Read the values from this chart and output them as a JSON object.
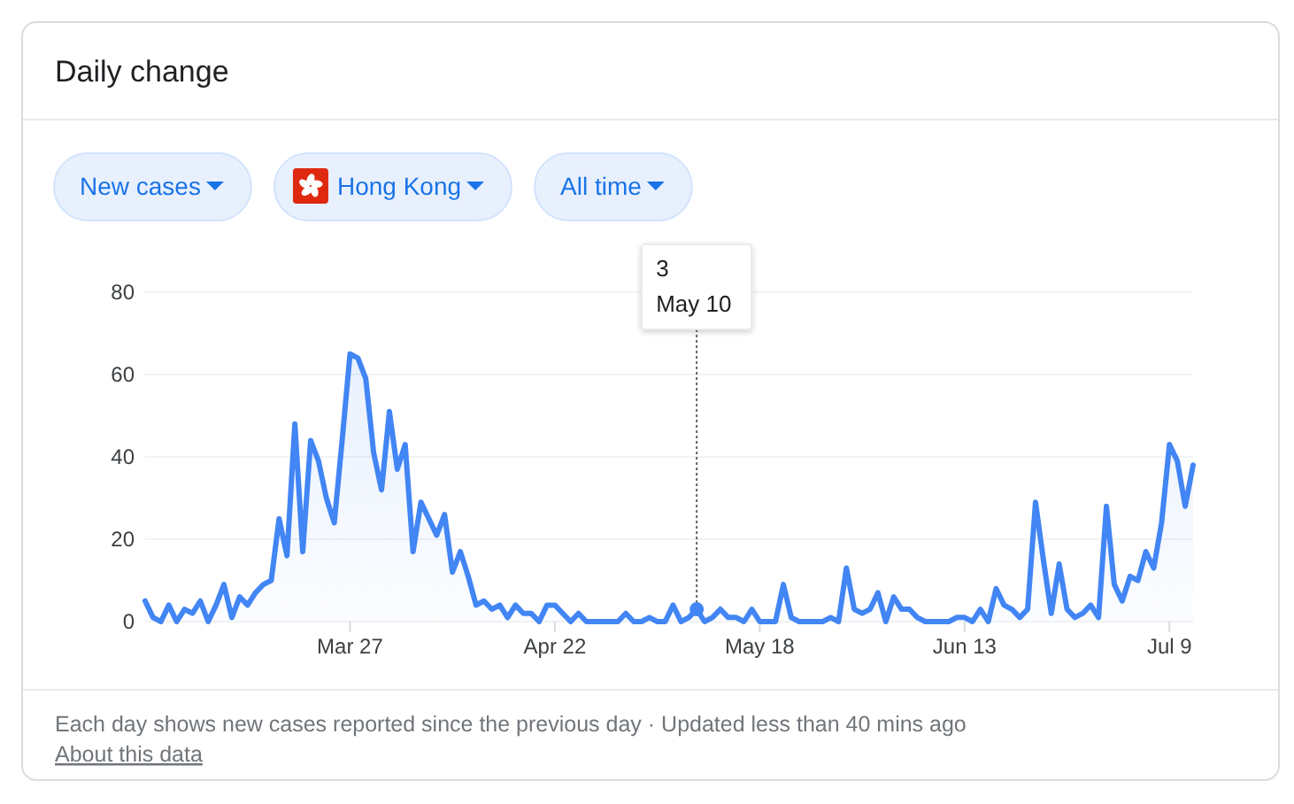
{
  "chart_data": {
    "type": "area",
    "title": "Daily change",
    "annotations": [
      "New cases",
      "Hong Kong",
      "All time",
      "3",
      "Each day shows new cases reported since the previous day · Updated less than 40 mins ago",
      "About this data"
    ],
    "ref_lines": [
      {
        "axis": "x",
        "value": "--05-10",
        "label": "May 10",
        "line_style": "dotted",
        "color": "#5f6368"
      }
    ],
    "x": [
      "--03-01",
      "--03-02",
      "--03-03",
      "--03-04",
      "--03-05",
      "--03-06",
      "--03-07",
      "--03-08",
      "--03-09",
      "--03-10",
      "--03-11",
      "--03-12",
      "--03-13",
      "--03-14",
      "--03-15",
      "--03-16",
      "--03-17",
      "--03-18",
      "--03-19",
      "--03-20",
      "--03-21",
      "--03-22",
      "--03-23",
      "--03-24",
      "--03-25",
      "--03-26",
      "--03-27",
      "--03-28",
      "--03-29",
      "--03-30",
      "--03-31",
      "--04-01",
      "--04-02",
      "--04-03",
      "--04-04",
      "--04-05",
      "--04-06",
      "--04-07",
      "--04-08",
      "--04-09",
      "--04-10",
      "--04-11",
      "--04-12",
      "--04-13",
      "--04-14",
      "--04-15",
      "--04-16",
      "--04-17",
      "--04-18",
      "--04-19",
      "--04-20",
      "--04-21",
      "--04-22",
      "--04-23",
      "--04-24",
      "--04-25",
      "--04-26",
      "--04-27",
      "--04-28",
      "--04-29",
      "--04-30",
      "--05-01",
      "--05-02",
      "--05-03",
      "--05-04",
      "--05-05",
      "--05-06",
      "--05-07",
      "--05-08",
      "--05-09",
      "--05-10",
      "--05-11",
      "--05-12",
      "--05-13",
      "--05-14",
      "--05-15",
      "--05-16",
      "--05-17",
      "--05-18",
      "--05-19",
      "--05-20",
      "--05-21",
      "--05-22",
      "--05-23",
      "--05-24",
      "--05-25",
      "--05-26",
      "--05-27",
      "--05-28",
      "--05-29",
      "--05-30",
      "--05-31",
      "--06-01",
      "--06-02",
      "--06-03",
      "--06-04",
      "--06-05",
      "--06-06",
      "--06-07",
      "--06-08",
      "--06-09",
      "--06-10",
      "--06-11",
      "--06-12",
      "--06-13",
      "--06-14",
      "--06-15",
      "--06-16",
      "--06-17",
      "--06-18",
      "--06-19",
      "--06-20",
      "--06-21",
      "--06-22",
      "--06-23",
      "--06-24",
      "--06-25",
      "--06-26",
      "--06-27",
      "--06-28",
      "--06-29",
      "--06-30",
      "--07-01",
      "--07-02",
      "--07-03",
      "--07-04",
      "--07-05",
      "--07-06",
      "--07-07",
      "--07-08",
      "--07-09",
      "--07-10",
      "--07-11",
      "--07-12"
    ],
    "values": [
      5,
      1,
      0,
      4,
      0,
      3,
      2,
      5,
      0,
      4,
      9,
      1,
      6,
      4,
      7,
      9,
      10,
      25,
      16,
      48,
      17,
      44,
      39,
      30,
      24,
      44,
      65,
      64,
      59,
      41,
      32,
      51,
      37,
      43,
      17,
      29,
      25,
      21,
      26,
      12,
      17,
      11,
      4,
      5,
      3,
      4,
      1,
      4,
      2,
      2,
      0,
      4,
      4,
      2,
      0,
      2,
      0,
      0,
      0,
      0,
      0,
      2,
      0,
      0,
      1,
      0,
      0,
      4,
      0,
      1,
      3,
      0,
      1,
      3,
      1,
      1,
      0,
      3,
      0,
      0,
      0,
      9,
      1,
      0,
      0,
      0,
      0,
      1,
      0,
      13,
      3,
      2,
      3,
      7,
      0,
      6,
      3,
      3,
      1,
      0,
      0,
      0,
      0,
      1,
      1,
      0,
      3,
      0,
      8,
      4,
      3,
      1,
      3,
      29,
      15,
      2,
      14,
      3,
      1,
      2,
      4,
      1,
      28,
      9,
      5,
      11,
      10,
      17,
      13,
      24,
      43,
      39,
      28,
      38
    ],
    "color": "#4285f4",
    "xlim": [
      "--03-01",
      "--07-12"
    ],
    "xticks": [
      {
        "value": "--03-27",
        "label": "Mar 27"
      },
      {
        "value": "--04-22",
        "label": "Apr 22"
      },
      {
        "value": "--05-18",
        "label": "May 18"
      },
      {
        "value": "--06-13",
        "label": "Jun 13"
      },
      {
        "value": "--07-09",
        "label": "Jul 9"
      }
    ],
    "ylim": [
      0,
      80
    ],
    "yticks": [
      0,
      20,
      40,
      60,
      80
    ],
    "grid": "y"
  }
}
